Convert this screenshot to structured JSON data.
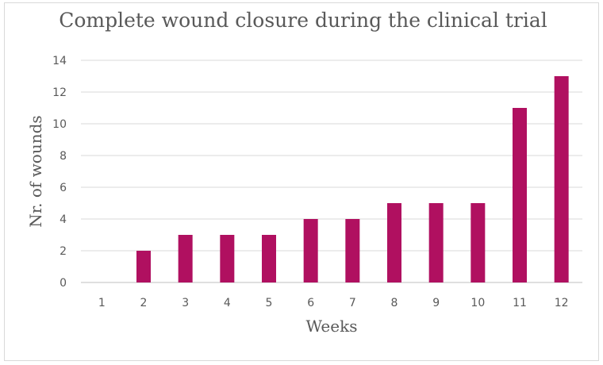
{
  "chart_data": {
    "type": "bar",
    "title": "Complete wound closure during the clinical trial",
    "xlabel": "Weeks",
    "ylabel": "Nr. of wounds",
    "categories": [
      "1",
      "2",
      "3",
      "4",
      "5",
      "6",
      "7",
      "8",
      "9",
      "10",
      "11",
      "12"
    ],
    "values": [
      0,
      2,
      3,
      3,
      3,
      4,
      4,
      5,
      5,
      5,
      11,
      13
    ],
    "ylim": [
      0,
      14
    ],
    "yticks": [
      "0",
      "2",
      "4",
      "6",
      "8",
      "10",
      "12",
      "14"
    ],
    "grid": true,
    "legend": "none",
    "colors": {
      "bar": "#B01060",
      "text": "#595959",
      "grid": "#d9d9d9"
    }
  }
}
